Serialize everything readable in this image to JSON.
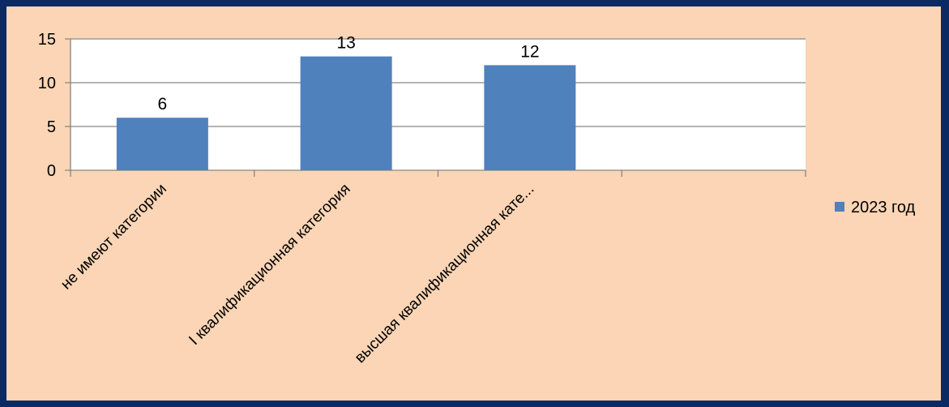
{
  "chart_data": {
    "type": "bar",
    "categories": [
      "не имеют категории",
      "I квалификационная категория",
      "высшая квалификационная кате...",
      ""
    ],
    "series": [
      {
        "name": "2023 год",
        "values": [
          6,
          13,
          12,
          null
        ],
        "color": "#4f81bd"
      }
    ],
    "data_labels": [
      "6",
      "13",
      "12"
    ],
    "ylim": [
      0,
      15
    ],
    "yticks": [
      0,
      5,
      10,
      15
    ],
    "grid": true,
    "legend_position": "right",
    "plot_background": "#ffffff",
    "chart_background": "#fbd5b5",
    "border_color": "#0b2a63"
  }
}
